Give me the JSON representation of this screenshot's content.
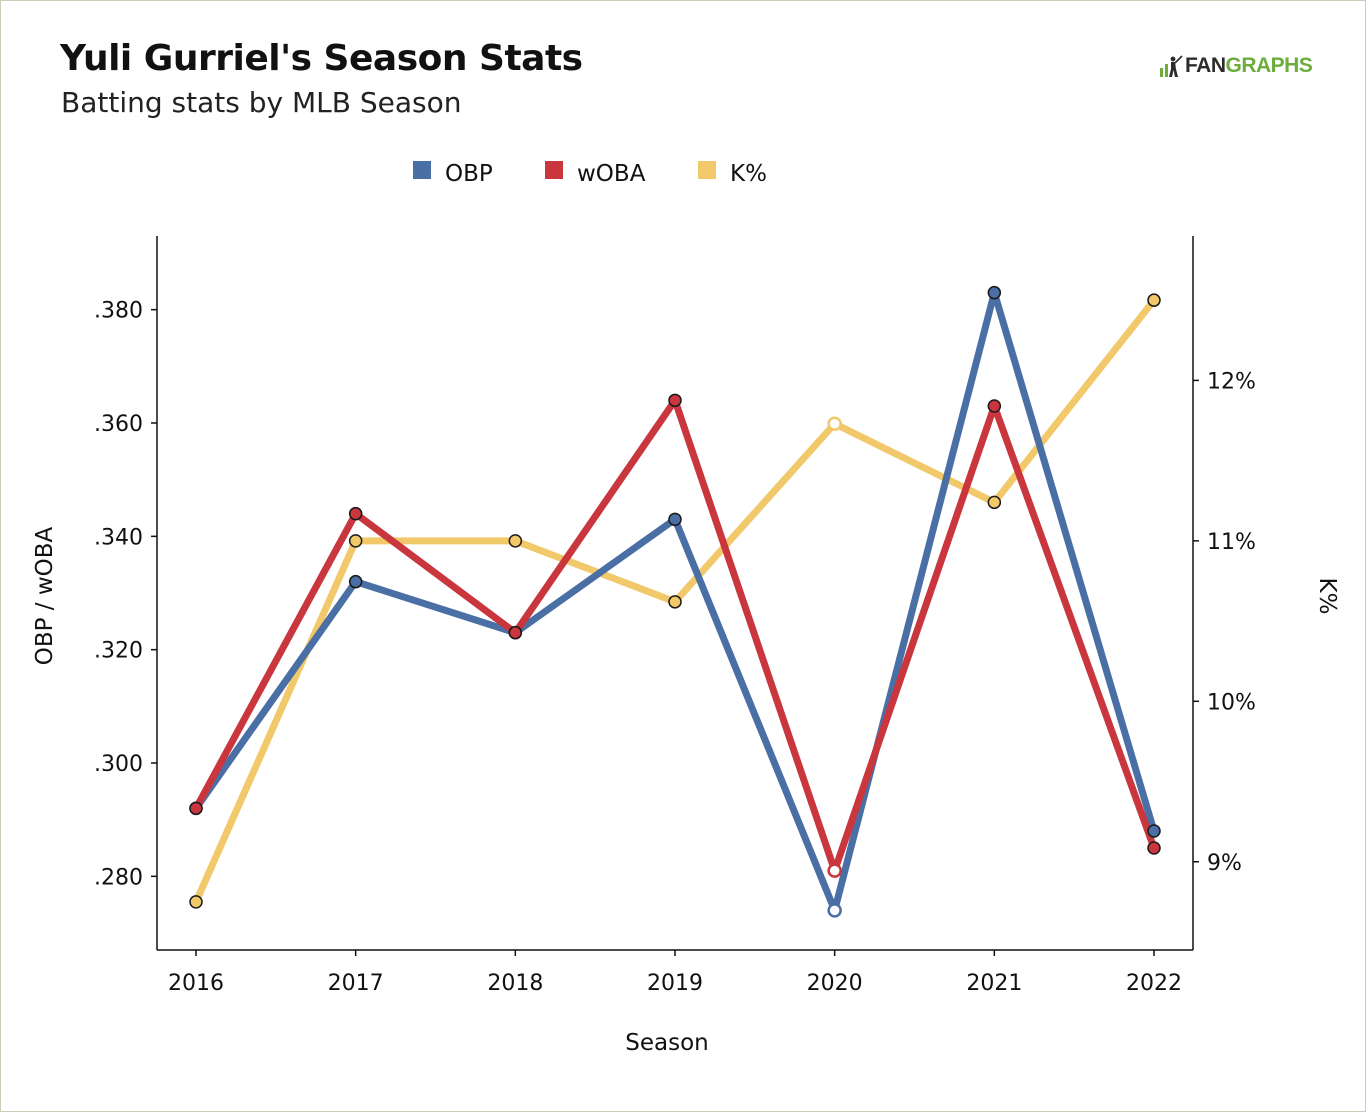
{
  "header": {
    "title": "Yuli Gurriel's Season Stats",
    "subtitle": "Batting stats by MLB Season"
  },
  "logo": {
    "text_fan": "FAN",
    "text_graphs": "GRAPHS",
    "fan_color": "#2c2c2c",
    "graphs_color": "#6cae3e"
  },
  "chart_data": {
    "type": "line",
    "title": "Yuli Gurriel's Season Stats",
    "subtitle": "Batting stats by MLB Season",
    "xlabel": "Season",
    "ylabel_left": "OBP / wOBA",
    "ylabel_right": "K%",
    "categories": [
      "2016",
      "2017",
      "2018",
      "2019",
      "2020",
      "2021",
      "2022"
    ],
    "y_left": {
      "ylim": [
        0.267,
        0.393
      ],
      "ticks": [
        0.28,
        0.3,
        0.32,
        0.34,
        0.36,
        0.38
      ],
      "tick_labels": [
        ".280",
        ".300",
        ".320",
        ".340",
        ".360",
        ".380"
      ]
    },
    "y_right": {
      "ylim": [
        8.45,
        12.9
      ],
      "ticks": [
        9,
        10,
        11,
        12
      ],
      "tick_labels": [
        "9%",
        "10%",
        "11%",
        "12%"
      ]
    },
    "series": [
      {
        "name": "OBP",
        "axis": "left",
        "color": "#4a6fa5",
        "values": [
          0.292,
          0.332,
          0.323,
          0.343,
          0.274,
          0.383,
          0.288
        ],
        "hollow_points": [
          4
        ]
      },
      {
        "name": "wOBA",
        "axis": "left",
        "color": "#c9363e",
        "values": [
          0.292,
          0.344,
          0.323,
          0.364,
          0.281,
          0.363,
          0.285
        ],
        "hollow_points": [
          4
        ]
      },
      {
        "name": "K%",
        "axis": "right",
        "color": "#f2c96a",
        "values": [
          8.75,
          11.0,
          11.0,
          10.62,
          11.73,
          11.24,
          12.5
        ],
        "hollow_points": [
          4
        ]
      }
    ],
    "legend": {
      "position": "top-center",
      "entries": [
        "OBP",
        "wOBA",
        "K%"
      ]
    },
    "grid": false
  }
}
